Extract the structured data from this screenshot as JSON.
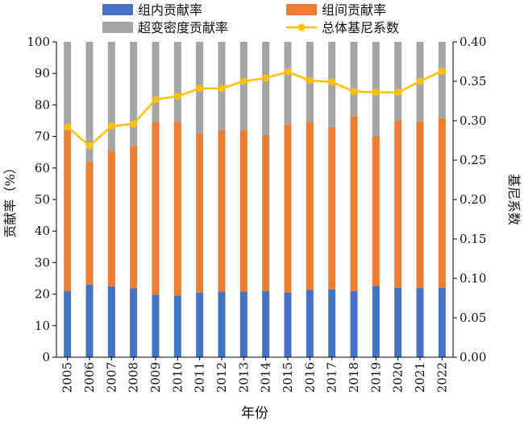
{
  "chart_data": {
    "type": "bar",
    "stacked": true,
    "categories": [
      "2005",
      "2006",
      "2007",
      "2008",
      "2009",
      "2010",
      "2011",
      "2012",
      "2013",
      "2014",
      "2015",
      "2016",
      "2017",
      "2018",
      "2019",
      "2020",
      "2021",
      "2022"
    ],
    "xlabel": "年份",
    "ylabel": "贡献率（%）",
    "y2label": "基尼系数",
    "ylim": [
      0,
      100
    ],
    "y2lim": [
      0,
      0.4
    ],
    "yticks": [
      "0",
      "10",
      "20",
      "30",
      "40",
      "50",
      "60",
      "70",
      "80",
      "90",
      "100"
    ],
    "y2ticks": [
      "0.00",
      "0.05",
      "0.10",
      "0.15",
      "0.20",
      "0.25",
      "0.30",
      "0.35",
      "0.40"
    ],
    "grid": false,
    "legend_position": "top",
    "series": [
      {
        "name": "组内贡献率",
        "kind": "bar",
        "color": "#4472c4",
        "values": [
          21.0,
          23.0,
          22.5,
          21.8,
          19.8,
          19.5,
          20.5,
          20.8,
          20.8,
          21.0,
          20.5,
          21.3,
          21.5,
          21.0,
          22.6,
          22.0,
          22.0,
          22.0
        ]
      },
      {
        "name": "组间贡献率",
        "kind": "bar",
        "color": "#ed7d31",
        "values": [
          51.0,
          39.0,
          43.0,
          45.2,
          54.7,
          55.0,
          50.5,
          51.2,
          51.2,
          49.5,
          53.3,
          53.2,
          51.5,
          55.3,
          47.4,
          53.0,
          52.7,
          53.8
        ]
      },
      {
        "name": "超变密度贡献率",
        "kind": "bar",
        "color": "#a5a5a5",
        "values": [
          28.0,
          38.0,
          34.5,
          33.0,
          25.5,
          25.5,
          29.0,
          28.0,
          28.0,
          29.5,
          26.2,
          25.5,
          27.0,
          23.7,
          30.0,
          25.0,
          25.3,
          24.2
        ]
      },
      {
        "name": "总体基尼系数",
        "kind": "line",
        "axis": "right",
        "color": "#ffc000",
        "values": [
          0.292,
          0.268,
          0.293,
          0.296,
          0.327,
          0.331,
          0.341,
          0.341,
          0.35,
          0.354,
          0.362,
          0.351,
          0.349,
          0.337,
          0.336,
          0.336,
          0.35,
          0.363
        ]
      }
    ]
  }
}
